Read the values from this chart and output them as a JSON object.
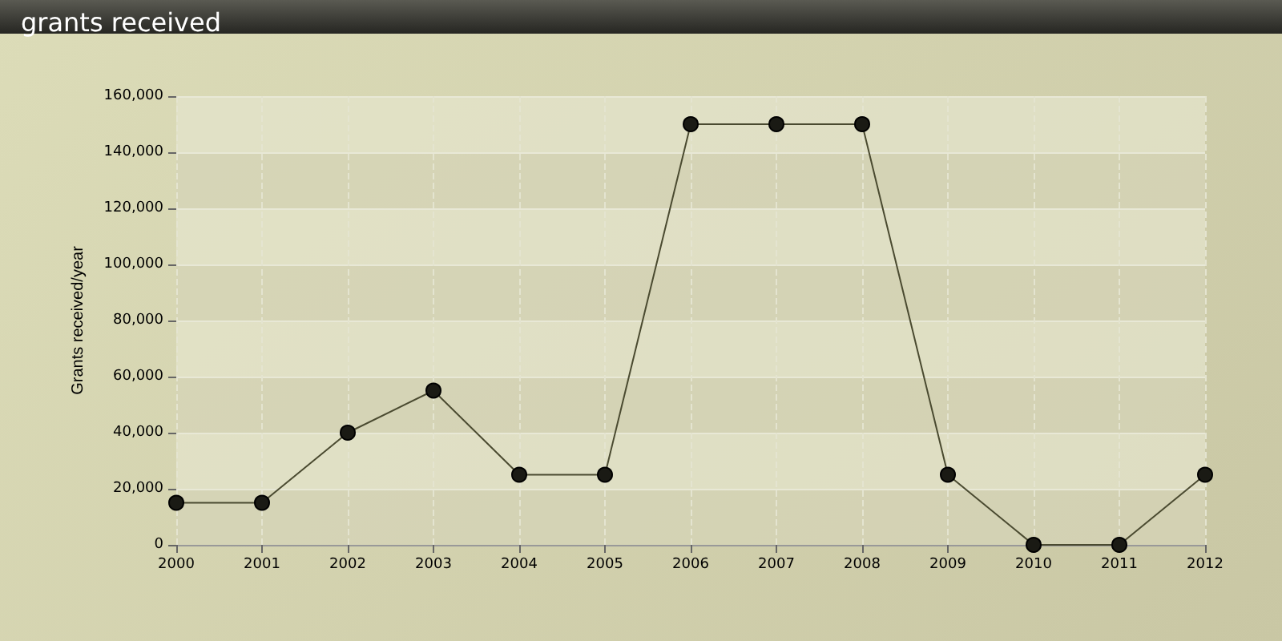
{
  "chart_data": {
    "type": "line",
    "title": "grants received",
    "ylabel": "Grants received/year",
    "categories": [
      "2000",
      "2001",
      "2002",
      "2003",
      "2004",
      "2005",
      "2006",
      "2007",
      "2008",
      "2009",
      "2010",
      "2011",
      "2012"
    ],
    "series": [
      {
        "color": "#1a1a14",
        "values": [
          15000,
          15000,
          40000,
          55000,
          25000,
          25000,
          150000,
          150000,
          150000,
          25000,
          0,
          0,
          25000
        ]
      }
    ],
    "ylim": [
      0,
      160000
    ],
    "yticks": [
      0,
      {
        "value": 20000,
        "label": "20,000"
      },
      {
        "value": 40000,
        "label": "40,000"
      },
      {
        "value": 60000,
        "label": "60,000"
      },
      {
        "value": 80000,
        "label": "80,000"
      },
      {
        "value": 100000,
        "label": "100,000"
      },
      {
        "value": 120000,
        "label": "120,000"
      },
      {
        "value": 140000,
        "label": "140,000"
      },
      {
        "value": 160000,
        "label": "160,000"
      }
    ],
    "grid": true,
    "marker": "circle",
    "line_style": "solid"
  }
}
